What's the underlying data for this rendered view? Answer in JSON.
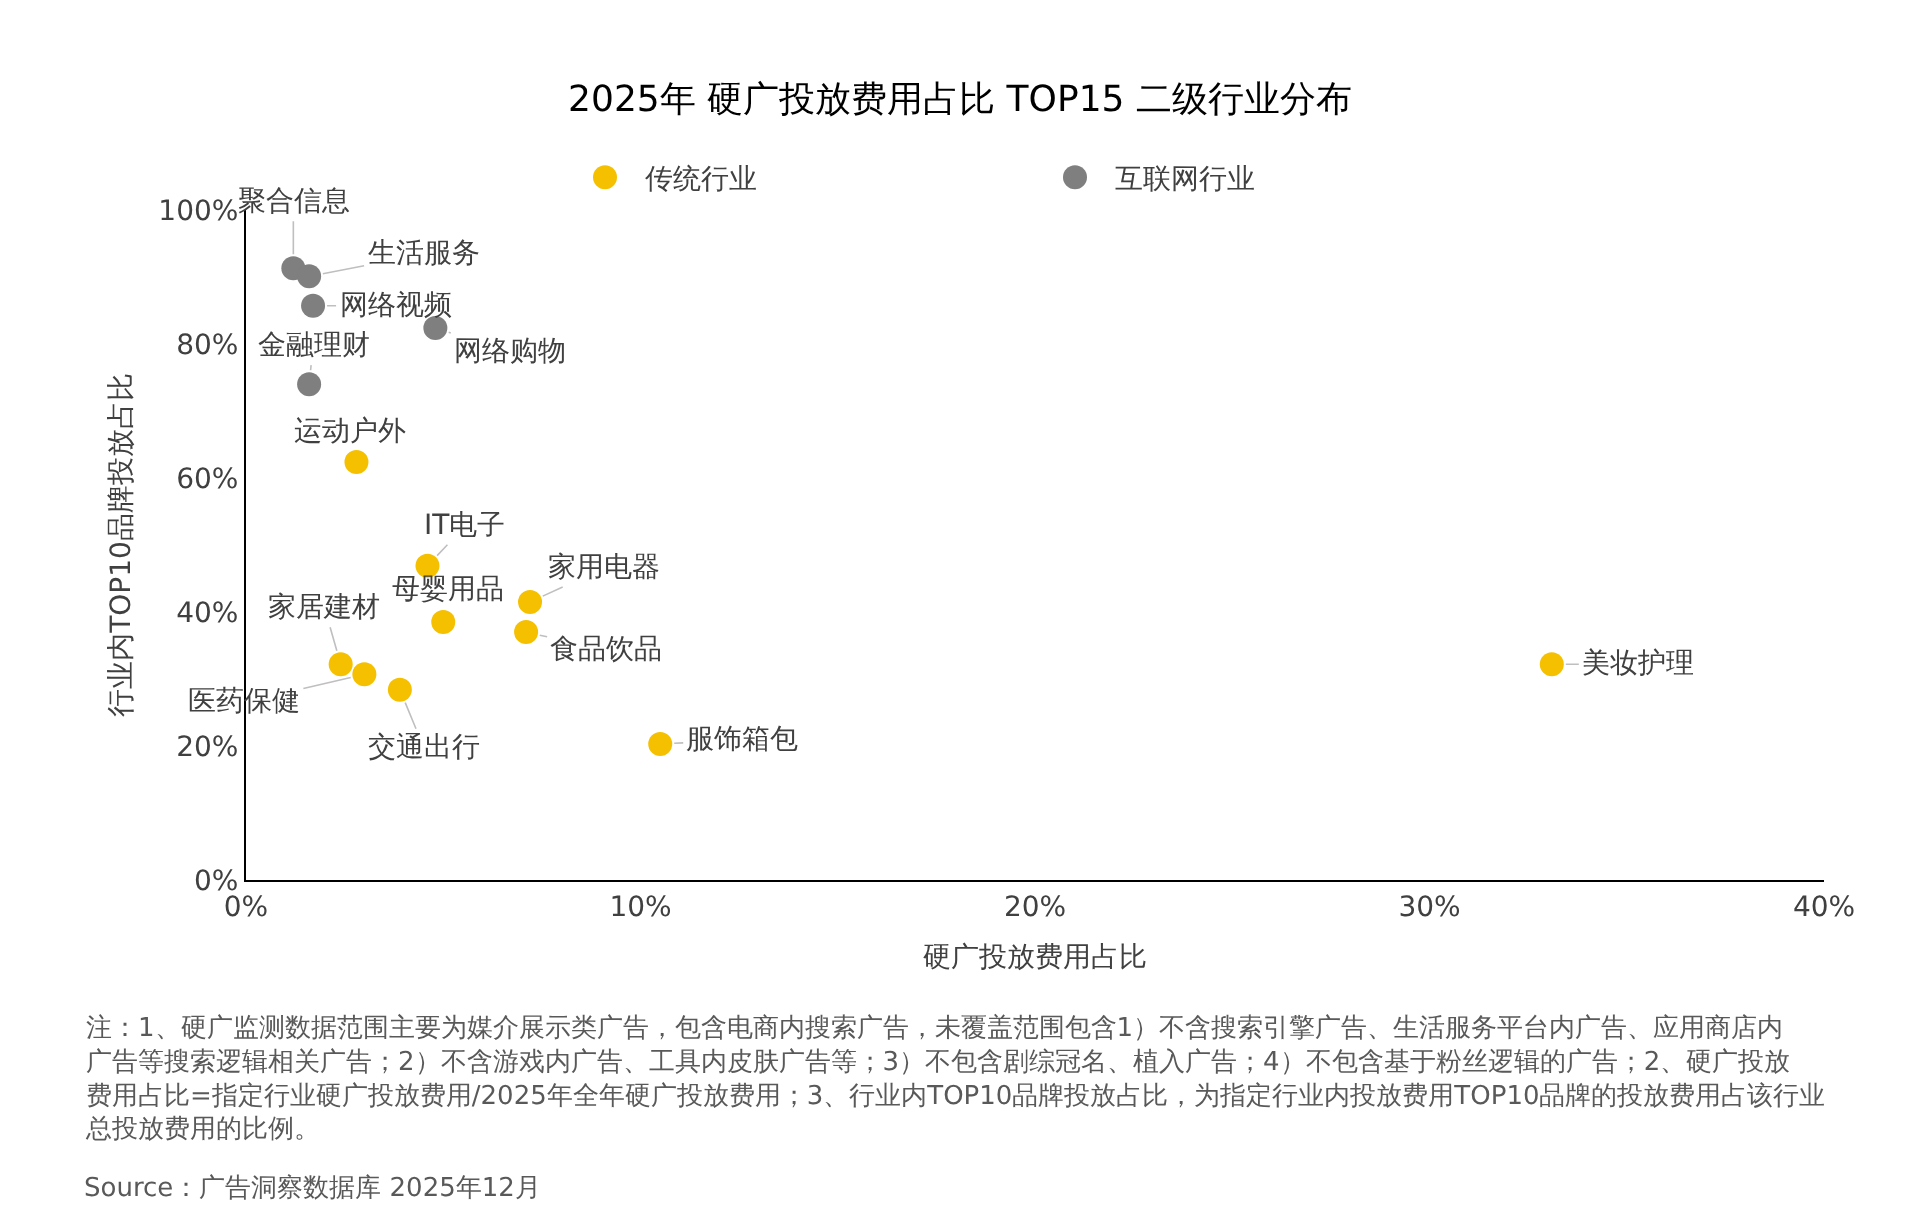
{
  "chart_data": {
    "type": "scatter",
    "title": "2025年 硬广投放费用占比 TOP15 二级行业分布",
    "xlabel": "硬广投放费用占比",
    "ylabel": "行业内TOP10品牌投放占比",
    "xlim": [
      0,
      40
    ],
    "ylim": [
      0,
      100
    ],
    "xticks": [
      {
        "value": 0,
        "label": "0%"
      },
      {
        "value": 10,
        "label": "10%"
      },
      {
        "value": 20,
        "label": "20%"
      },
      {
        "value": 30,
        "label": "30%"
      },
      {
        "value": 40,
        "label": "40%"
      }
    ],
    "yticks": [
      {
        "value": 0,
        "label": "0%"
      },
      {
        "value": 20,
        "label": "20%"
      },
      {
        "value": 40,
        "label": "40%"
      },
      {
        "value": 60,
        "label": "60%"
      },
      {
        "value": 80,
        "label": "80%"
      },
      {
        "value": 100,
        "label": "100%"
      }
    ],
    "legend": "top",
    "marker": "circle",
    "series": [
      {
        "name": "传统行业",
        "color": "#f5c000",
        "x": [
          2.8,
          4.6,
          5.0,
          7.2,
          7.1,
          2.4,
          3.0,
          3.9,
          10.5,
          33.1
        ],
        "values": [
          62.4,
          46.9,
          38.5,
          41.5,
          37.0,
          32.2,
          30.7,
          28.4,
          20.3,
          32.2
        ]
      },
      {
        "name": "互联网行业",
        "color": "#7f7f7f",
        "x": [
          1.2,
          1.6,
          1.7,
          4.8,
          1.6
        ],
        "values": [
          91.3,
          90.1,
          85.7,
          82.4,
          74.0
        ]
      }
    ],
    "annotations": [
      {
        "text": "聚合信息",
        "x": 1.2,
        "y": 91.3
      },
      {
        "text": "生活服务",
        "x": 1.6,
        "y": 90.1
      },
      {
        "text": "网络视频",
        "x": 1.7,
        "y": 85.7
      },
      {
        "text": "网络购物",
        "x": 4.8,
        "y": 82.4
      },
      {
        "text": "金融理财",
        "x": 1.6,
        "y": 74.0
      },
      {
        "text": "运动户外",
        "x": 2.8,
        "y": 62.4
      },
      {
        "text": "IT电子",
        "x": 4.6,
        "y": 46.9
      },
      {
        "text": "母婴用品",
        "x": 5.0,
        "y": 38.5
      },
      {
        "text": "家用电器",
        "x": 7.2,
        "y": 41.5
      },
      {
        "text": "食品饮品",
        "x": 7.1,
        "y": 37.0
      },
      {
        "text": "家居建材",
        "x": 2.4,
        "y": 32.2
      },
      {
        "text": "医药保健",
        "x": 3.0,
        "y": 30.7
      },
      {
        "text": "交通出行",
        "x": 3.9,
        "y": 28.4
      },
      {
        "text": "服饰箱包",
        "x": 10.5,
        "y": 20.3
      },
      {
        "text": "美妆护理",
        "x": 33.1,
        "y": 32.2
      },
      "注：1、硬广监测数据范围主要为媒介展示类广告，包含电商内搜索广告，未覆盖范围包含1）不含搜索引擎广告、生活服务平台内广告、应用商店内广告等搜索逻辑相关广告；2）不含游戏内广告、工具内皮肤广告等；3）不包含剧综冠名、植入广告；4）不包含基于粉丝逻辑的广告；2、硬广投放费用占比=指定行业硬广投放费用/2025年全年硬广投放费用；3、行业内TOP10品牌投放占比，为指定行业内投放费用TOP10品牌的投放费用占该行业总投放费用的比例。",
      "Source：广告洞察数据库 2025年12月"
    ]
  }
}
